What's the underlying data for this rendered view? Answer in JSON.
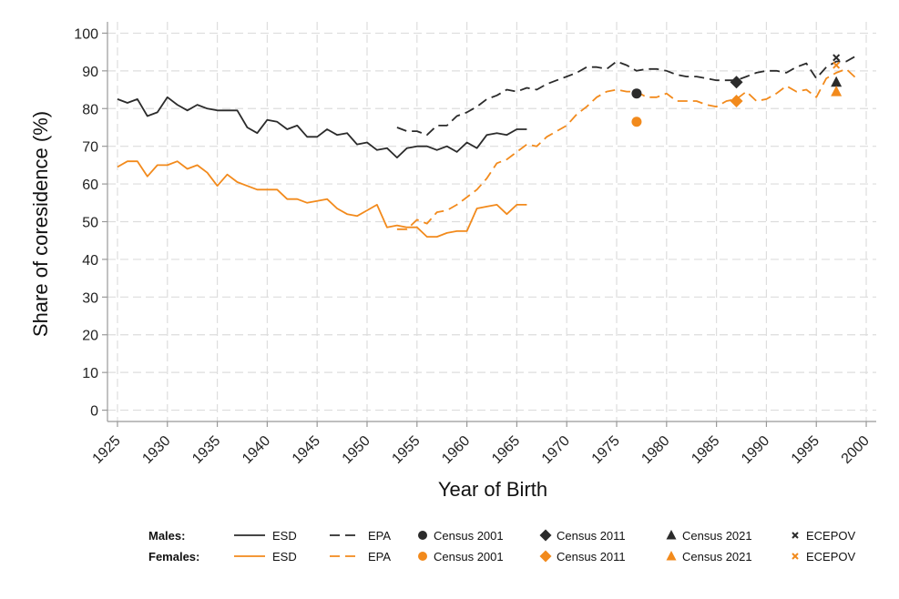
{
  "chart_data": {
    "type": "line",
    "title": "",
    "xlabel": "Year of Birth",
    "ylabel": "Share of coresidence (%)",
    "xlim": [
      1924,
      2001
    ],
    "ylim": [
      -3,
      103
    ],
    "xticks": [
      1925,
      1930,
      1935,
      1940,
      1945,
      1950,
      1955,
      1960,
      1965,
      1970,
      1975,
      1980,
      1985,
      1990,
      1995,
      2000
    ],
    "yticks": [
      0,
      10,
      20,
      30,
      40,
      50,
      60,
      70,
      80,
      90,
      100
    ],
    "grid": true,
    "colors": {
      "males": "#2b2b2b",
      "females": "#f28a1c",
      "grid": "#dddddd",
      "axis": "#999999"
    },
    "series": [
      {
        "name": "Males ESD",
        "group": "males",
        "style": "solid",
        "x": [
          1925,
          1926,
          1927,
          1928,
          1929,
          1930,
          1931,
          1932,
          1933,
          1934,
          1935,
          1936,
          1937,
          1938,
          1939,
          1940,
          1941,
          1942,
          1943,
          1944,
          1945,
          1946,
          1947,
          1948,
          1949,
          1950,
          1951,
          1952,
          1953,
          1954,
          1955,
          1956,
          1957,
          1958,
          1959,
          1960,
          1961,
          1962,
          1963,
          1964,
          1965,
          1966
        ],
        "values": [
          82.5,
          81.5,
          82.5,
          78,
          79,
          83,
          81,
          79.5,
          81,
          80,
          79.5,
          79.5,
          79.5,
          75,
          73.5,
          77,
          76.5,
          74.5,
          75.5,
          72.5,
          72.5,
          74.5,
          73,
          73.5,
          70.5,
          71,
          69,
          69.5,
          67,
          69.5,
          70,
          70,
          69,
          70,
          68.5,
          71,
          69.5,
          73,
          73.5,
          73,
          74.5,
          74.5
        ]
      },
      {
        "name": "Males EPA",
        "group": "males",
        "style": "dashed",
        "x": [
          1953,
          1954,
          1955,
          1956,
          1957,
          1958,
          1959,
          1960,
          1961,
          1962,
          1963,
          1964,
          1965,
          1966,
          1967,
          1968,
          1969,
          1970,
          1971,
          1972,
          1973,
          1974,
          1975,
          1976,
          1977,
          1978,
          1979,
          1980,
          1981,
          1982,
          1983,
          1984,
          1985,
          1986,
          1987,
          1988,
          1989,
          1990,
          1991,
          1992,
          1993,
          1994,
          1995,
          1996,
          1997,
          1998,
          1999
        ],
        "values": [
          75,
          74,
          74,
          73,
          75.5,
          75.5,
          78,
          79,
          80.5,
          82.5,
          83.5,
          85,
          84.5,
          85.5,
          85,
          86.5,
          87.5,
          88.5,
          89.5,
          91,
          91,
          90.5,
          92.5,
          91.5,
          90,
          90.5,
          90.5,
          90,
          89,
          88.5,
          88.5,
          88,
          87.5,
          87.5,
          87.5,
          88.5,
          89.5,
          90,
          90,
          89.5,
          91,
          92,
          88,
          91,
          92.5,
          92.5,
          94
        ]
      },
      {
        "name": "Females ESD",
        "group": "females",
        "style": "solid",
        "x": [
          1925,
          1926,
          1927,
          1928,
          1929,
          1930,
          1931,
          1932,
          1933,
          1934,
          1935,
          1936,
          1937,
          1938,
          1939,
          1940,
          1941,
          1942,
          1943,
          1944,
          1945,
          1946,
          1947,
          1948,
          1949,
          1950,
          1951,
          1952,
          1953,
          1954,
          1955,
          1956,
          1957,
          1958,
          1959,
          1960,
          1961,
          1962,
          1963,
          1964,
          1965,
          1966
        ],
        "values": [
          64.5,
          66,
          66,
          62,
          65,
          65,
          66,
          64,
          65,
          63,
          59.5,
          62.5,
          60.5,
          59.5,
          58.5,
          58.5,
          58.5,
          56,
          56,
          55,
          55.5,
          56,
          53.5,
          52,
          51.5,
          53,
          54.5,
          48.5,
          49,
          48.5,
          48.5,
          46,
          46,
          47,
          47.5,
          47.5,
          53.5,
          54,
          54.5,
          52,
          54.5,
          54.5
        ]
      },
      {
        "name": "Females EPA",
        "group": "females",
        "style": "dashed",
        "x": [
          1953,
          1954,
          1955,
          1956,
          1957,
          1958,
          1959,
          1960,
          1961,
          1962,
          1963,
          1964,
          1965,
          1966,
          1967,
          1968,
          1969,
          1970,
          1971,
          1972,
          1973,
          1974,
          1975,
          1976,
          1977,
          1978,
          1979,
          1980,
          1981,
          1982,
          1983,
          1984,
          1985,
          1986,
          1987,
          1988,
          1989,
          1990,
          1991,
          1992,
          1993,
          1994,
          1995,
          1996,
          1997,
          1998,
          1999
        ],
        "values": [
          48,
          48,
          50.5,
          49.5,
          52.5,
          53,
          54.5,
          56.5,
          58.5,
          61.5,
          65.5,
          66.5,
          68.5,
          70.5,
          70,
          72.5,
          74,
          75.5,
          78.5,
          80.5,
          83,
          84.5,
          85,
          84.5,
          84.5,
          83,
          83,
          84,
          82,
          82,
          82,
          81,
          80.5,
          82,
          82.5,
          84.5,
          82,
          82.5,
          84,
          86,
          84.5,
          85,
          83,
          88,
          89.5,
          90.5,
          88
        ]
      }
    ],
    "points": [
      {
        "group": "males",
        "source": "Census 2001",
        "marker": "circle",
        "x": 1977,
        "y": 84
      },
      {
        "group": "males",
        "source": "Census 2011",
        "marker": "diamond",
        "x": 1987,
        "y": 87
      },
      {
        "group": "males",
        "source": "Census 2021",
        "marker": "triangle",
        "x": 1997,
        "y": 87
      },
      {
        "group": "males",
        "source": "ECEPOV",
        "marker": "x",
        "x": 1997,
        "y": 93.5
      },
      {
        "group": "females",
        "source": "Census 2001",
        "marker": "circle",
        "x": 1977,
        "y": 76.5
      },
      {
        "group": "females",
        "source": "Census 2011",
        "marker": "diamond",
        "x": 1987,
        "y": 82
      },
      {
        "group": "females",
        "source": "Census 2021",
        "marker": "triangle",
        "x": 1997,
        "y": 84.5
      },
      {
        "group": "females",
        "source": "ECEPOV",
        "marker": "x",
        "x": 1997,
        "y": 91.5
      }
    ],
    "legend": {
      "position": "bottom",
      "rows": [
        {
          "label": "Males:",
          "group": "males"
        },
        {
          "label": "Females:",
          "group": "females"
        }
      ],
      "entries": [
        {
          "label": "ESD",
          "marker": "solid"
        },
        {
          "label": "EPA",
          "marker": "dashed"
        },
        {
          "label": "Census 2001",
          "marker": "circle"
        },
        {
          "label": "Census 2011",
          "marker": "diamond"
        },
        {
          "label": "Census 2021",
          "marker": "triangle"
        },
        {
          "label": "ECEPOV",
          "marker": "x"
        }
      ]
    }
  }
}
